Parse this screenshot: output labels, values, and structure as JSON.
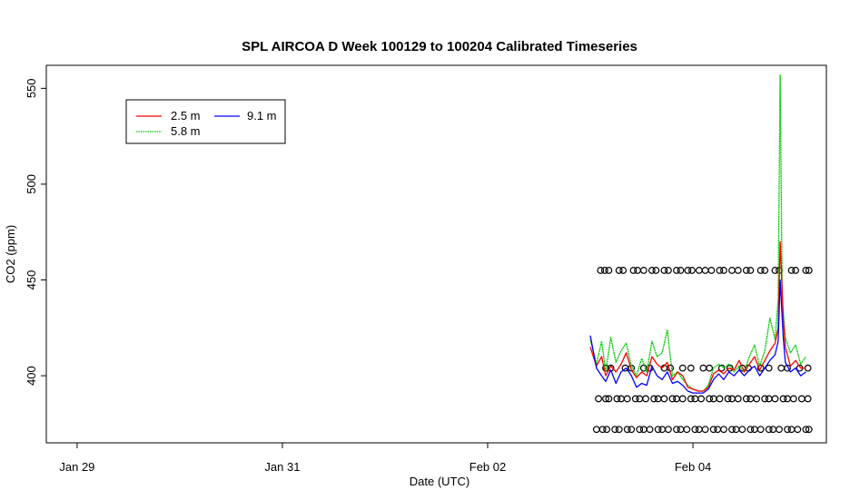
{
  "chart_data": {
    "type": "line",
    "title": "SPL AIRCOA D  Week 100129 to 100204  Calibrated Timeseries",
    "xlabel": "Date (UTC)",
    "ylabel": "CO2 (ppm)",
    "x_axis": {
      "unit": "days since Jan 29",
      "range": [
        -0.3,
        7.3
      ],
      "ticks": [
        {
          "x": 0,
          "label": "Jan 29"
        },
        {
          "x": 2,
          "label": "Jan 31"
        },
        {
          "x": 4,
          "label": "Feb 02"
        },
        {
          "x": 6,
          "label": "Feb 04"
        }
      ]
    },
    "y_axis": {
      "range": [
        365,
        562
      ],
      "ticks": [
        400,
        450,
        500,
        550
      ]
    },
    "legend": {
      "placement": "top-left",
      "entries": [
        {
          "label": "2.5 m",
          "color": "#ff0000",
          "series": "2.5m"
        },
        {
          "label": "5.8 m",
          "color": "#00cc00",
          "series": "5.8m"
        },
        {
          "label": "9.1 m",
          "color": "#0000ff",
          "series": "9.1m"
        }
      ]
    },
    "series": [
      {
        "name": "2.5 m",
        "color": "#ff0000",
        "x": [
          5.0,
          5.06,
          5.11,
          5.15,
          5.2,
          5.25,
          5.3,
          5.35,
          5.4,
          5.45,
          5.5,
          5.55,
          5.6,
          5.65,
          5.7,
          5.75,
          5.8,
          5.85,
          5.9,
          5.95,
          6.0,
          6.05,
          6.1,
          6.15,
          6.2,
          6.25,
          6.3,
          6.35,
          6.4,
          6.45,
          6.5,
          6.55,
          6.6,
          6.65,
          6.7,
          6.75,
          6.8,
          6.83,
          6.85,
          6.88,
          6.9,
          6.95,
          7.0,
          7.05,
          7.1
        ],
        "values": [
          415,
          405,
          410,
          400,
          405,
          402,
          406,
          412,
          403,
          399,
          402,
          400,
          410,
          406,
          404,
          407,
          398,
          402,
          400,
          394,
          393,
          392,
          392,
          394,
          401,
          403,
          401,
          404,
          403,
          408,
          402,
          406,
          410,
          403,
          408,
          413,
          417,
          425,
          470,
          430,
          415,
          405,
          408,
          404,
          404
        ]
      },
      {
        "name": "5.8 m",
        "color": "#00cc00",
        "x": [
          5.0,
          5.06,
          5.11,
          5.15,
          5.2,
          5.25,
          5.3,
          5.35,
          5.4,
          5.45,
          5.5,
          5.55,
          5.6,
          5.65,
          5.7,
          5.75,
          5.8,
          5.85,
          5.9,
          5.95,
          6.0,
          6.05,
          6.1,
          6.15,
          6.2,
          6.25,
          6.3,
          6.35,
          6.4,
          6.45,
          6.5,
          6.55,
          6.6,
          6.65,
          6.7,
          6.75,
          6.8,
          6.83,
          6.85,
          6.87,
          6.9,
          6.95,
          7.0,
          7.05,
          7.1
        ],
        "values": [
          419,
          406,
          418,
          402,
          420,
          407,
          413,
          417,
          405,
          400,
          409,
          402,
          418,
          410,
          412,
          424,
          400,
          402,
          398,
          395,
          393,
          392,
          392,
          395,
          404,
          406,
          404,
          406,
          402,
          405,
          402,
          410,
          416,
          405,
          413,
          430,
          419,
          440,
          557,
          440,
          420,
          412,
          416,
          406,
          410
        ]
      },
      {
        "name": "9.1 m",
        "color": "#0000ff",
        "x": [
          5.0,
          5.06,
          5.11,
          5.15,
          5.2,
          5.25,
          5.3,
          5.35,
          5.4,
          5.45,
          5.5,
          5.55,
          5.6,
          5.65,
          5.7,
          5.75,
          5.8,
          5.85,
          5.9,
          5.95,
          6.0,
          6.05,
          6.1,
          6.15,
          6.2,
          6.25,
          6.3,
          6.35,
          6.4,
          6.45,
          6.5,
          6.55,
          6.6,
          6.65,
          6.7,
          6.75,
          6.8,
          6.83,
          6.85,
          6.88,
          6.9,
          6.95,
          7.0,
          7.05,
          7.1
        ],
        "values": [
          421,
          404,
          400,
          397,
          403,
          396,
          402,
          404,
          400,
          394,
          396,
          395,
          405,
          400,
          398,
          402,
          396,
          397,
          395,
          392,
          391,
          391,
          391,
          393,
          398,
          401,
          398,
          402,
          400,
          403,
          400,
          403,
          405,
          400,
          404,
          408,
          411,
          418,
          450,
          420,
          407,
          402,
          404,
          400,
          402
        ]
      }
    ],
    "reference_points": {
      "marker": "o",
      "color": "#000000",
      "levels": [
        {
          "y": 455,
          "x": [
            5.1,
            5.14,
            5.18,
            5.28,
            5.32,
            5.42,
            5.46,
            5.52,
            5.6,
            5.64,
            5.72,
            5.76,
            5.84,
            5.88,
            5.95,
            5.99,
            6.06,
            6.12,
            6.18,
            6.26,
            6.3,
            6.38,
            6.44,
            6.52,
            6.56,
            6.66,
            6.7,
            6.8,
            6.84,
            6.96,
            7.0,
            7.1,
            7.13
          ]
        },
        {
          "y": 404,
          "x": [
            5.15,
            5.2,
            5.34,
            5.4,
            5.52,
            5.58,
            5.72,
            5.78,
            5.9,
            5.98,
            6.1,
            6.16,
            6.28,
            6.36,
            6.48,
            6.54,
            6.66,
            6.74,
            6.86,
            6.92,
            7.04,
            7.12
          ]
        },
        {
          "y": 388,
          "x": [
            5.08,
            5.15,
            5.18,
            5.26,
            5.3,
            5.36,
            5.44,
            5.48,
            5.54,
            5.62,
            5.66,
            5.72,
            5.8,
            5.84,
            5.9,
            5.98,
            6.02,
            6.08,
            6.16,
            6.2,
            6.26,
            6.34,
            6.38,
            6.44,
            6.52,
            6.56,
            6.62,
            6.7,
            6.74,
            6.8,
            6.88,
            6.92,
            6.98,
            7.06,
            7.12
          ]
        },
        {
          "y": 372,
          "x": [
            5.06,
            5.12,
            5.16,
            5.24,
            5.28,
            5.36,
            5.4,
            5.48,
            5.52,
            5.58,
            5.66,
            5.7,
            5.76,
            5.84,
            5.88,
            5.94,
            6.02,
            6.06,
            6.12,
            6.2,
            6.24,
            6.3,
            6.38,
            6.42,
            6.48,
            6.56,
            6.6,
            6.66,
            6.74,
            6.78,
            6.84,
            6.92,
            6.96,
            7.02,
            7.1,
            7.13
          ]
        }
      ]
    },
    "grid": false
  }
}
